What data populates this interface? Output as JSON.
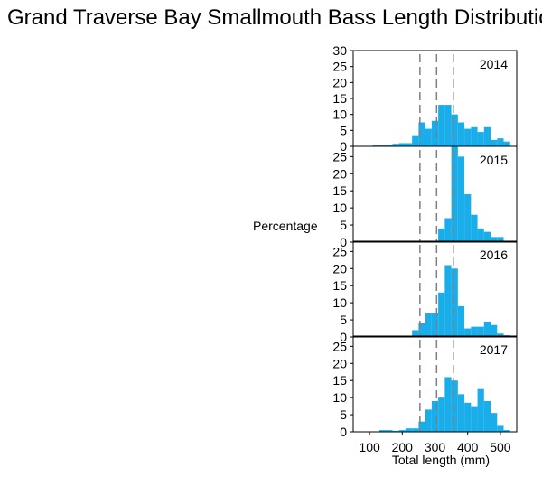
{
  "chart_data": {
    "type": "bar",
    "title": "Grand Traverse Bay Smallmouth Bass Length Distribution",
    "ylabel": "Percentage",
    "xlabel": "Total length (mm)",
    "bin_width_mm": 20,
    "xlim": [
      50,
      550
    ],
    "x_ticks": [
      100,
      200,
      300,
      400,
      500
    ],
    "reference_lines_mm": [
      254,
      305,
      356
    ],
    "color": "#19aeea",
    "reference_line_color": "#7f7f7f",
    "panels": [
      {
        "year": "2014",
        "ylim": [
          0,
          30
        ],
        "y_ticks": [
          0,
          5,
          10,
          15,
          20,
          25,
          30
        ],
        "bins": [
          {
            "x": 120,
            "value": 0.3
          },
          {
            "x": 140,
            "value": 0.3
          },
          {
            "x": 160,
            "value": 0.5
          },
          {
            "x": 180,
            "value": 0.8
          },
          {
            "x": 200,
            "value": 1.0
          },
          {
            "x": 220,
            "value": 1.0
          },
          {
            "x": 240,
            "value": 3.5
          },
          {
            "x": 260,
            "value": 7.5
          },
          {
            "x": 280,
            "value": 5.5
          },
          {
            "x": 300,
            "value": 8.0
          },
          {
            "x": 320,
            "value": 13.0
          },
          {
            "x": 340,
            "value": 13.0
          },
          {
            "x": 360,
            "value": 10.0
          },
          {
            "x": 380,
            "value": 7.5
          },
          {
            "x": 400,
            "value": 5.5
          },
          {
            "x": 420,
            "value": 6.0
          },
          {
            "x": 440,
            "value": 4.5
          },
          {
            "x": 460,
            "value": 6.0
          },
          {
            "x": 480,
            "value": 2.0
          },
          {
            "x": 500,
            "value": 2.5
          },
          {
            "x": 520,
            "value": 1.5
          }
        ]
      },
      {
        "year": "2015",
        "ylim": [
          0,
          28
        ],
        "y_ticks": [
          0,
          5,
          10,
          15,
          20,
          25
        ],
        "bins": [
          {
            "x": 320,
            "value": 4.0
          },
          {
            "x": 340,
            "value": 7.0
          },
          {
            "x": 360,
            "value": 28.0
          },
          {
            "x": 380,
            "value": 25.0
          },
          {
            "x": 400,
            "value": 14.0
          },
          {
            "x": 420,
            "value": 8.0
          },
          {
            "x": 440,
            "value": 4.0
          },
          {
            "x": 460,
            "value": 3.0
          },
          {
            "x": 480,
            "value": 1.5
          },
          {
            "x": 500,
            "value": 1.5
          }
        ]
      },
      {
        "year": "2016",
        "ylim": [
          0,
          28
        ],
        "y_ticks": [
          0,
          5,
          10,
          15,
          20,
          25
        ],
        "bins": [
          {
            "x": 240,
            "value": 2.0
          },
          {
            "x": 260,
            "value": 4.0
          },
          {
            "x": 280,
            "value": 7.0
          },
          {
            "x": 300,
            "value": 7.0
          },
          {
            "x": 320,
            "value": 13.0
          },
          {
            "x": 340,
            "value": 21.0
          },
          {
            "x": 360,
            "value": 20.0
          },
          {
            "x": 380,
            "value": 9.0
          },
          {
            "x": 400,
            "value": 2.5
          },
          {
            "x": 420,
            "value": 3.0
          },
          {
            "x": 440,
            "value": 3.0
          },
          {
            "x": 460,
            "value": 4.5
          },
          {
            "x": 480,
            "value": 3.5
          },
          {
            "x": 500,
            "value": 1.0
          },
          {
            "x": 520,
            "value": 0.5
          }
        ]
      },
      {
        "year": "2017",
        "ylim": [
          0,
          28
        ],
        "y_ticks": [
          0,
          5,
          10,
          15,
          20,
          25
        ],
        "bins": [
          {
            "x": 140,
            "value": 0.5
          },
          {
            "x": 160,
            "value": 0.5
          },
          {
            "x": 180,
            "value": 0.3
          },
          {
            "x": 200,
            "value": 0.5
          },
          {
            "x": 220,
            "value": 1.0
          },
          {
            "x": 240,
            "value": 1.0
          },
          {
            "x": 260,
            "value": 3.0
          },
          {
            "x": 280,
            "value": 6.5
          },
          {
            "x": 300,
            "value": 9.0
          },
          {
            "x": 320,
            "value": 10.0
          },
          {
            "x": 340,
            "value": 16.0
          },
          {
            "x": 360,
            "value": 15.0
          },
          {
            "x": 380,
            "value": 11.0
          },
          {
            "x": 400,
            "value": 8.5
          },
          {
            "x": 420,
            "value": 7.5
          },
          {
            "x": 440,
            "value": 12.5
          },
          {
            "x": 460,
            "value": 9.0
          },
          {
            "x": 480,
            "value": 5.5
          },
          {
            "x": 500,
            "value": 2.0
          },
          {
            "x": 520,
            "value": 0.5
          }
        ]
      }
    ]
  }
}
